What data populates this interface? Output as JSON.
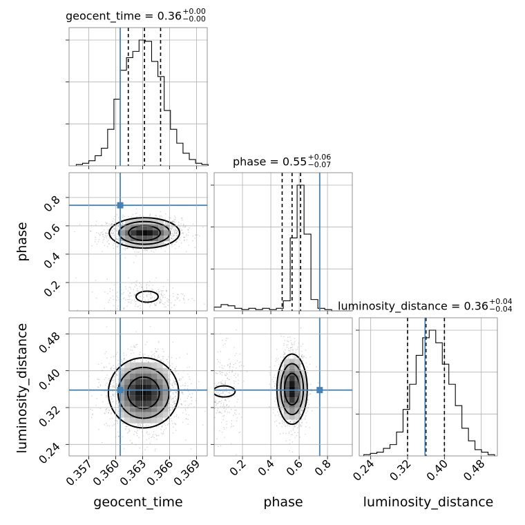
{
  "chart_data": {
    "type": "corner",
    "parameters": [
      "geocent_time",
      "phase",
      "luminosity_distance"
    ],
    "ranges": {
      "geocent_time": [
        0.3548,
        0.3702
      ],
      "phase": [
        0.0,
        0.975
      ],
      "luminosity_distance": [
        0.215,
        0.515
      ]
    },
    "truths": {
      "geocent_time": 0.3605,
      "phase": 0.745,
      "luminosity_distance": 0.358
    },
    "truth_color": "#4682b4",
    "titles": {
      "geocent_time": {
        "label": "geocent_time = 0.36",
        "plus": "+0.00",
        "minus": "−0.00"
      },
      "phase": {
        "label": "phase = 0.55",
        "plus": "+0.06",
        "minus": "−0.07"
      },
      "luminosity_distance": {
        "label": "luminosity_distance = 0.36",
        "plus": "+0.04",
        "minus": "−0.04"
      }
    },
    "quantiles": {
      "geocent_time": [
        0.3614,
        0.3632,
        0.365
      ],
      "phase": [
        0.48,
        0.55,
        0.61
      ],
      "luminosity_distance": [
        0.32,
        0.36,
        0.4
      ]
    },
    "ticks": {
      "geocent_time": [
        "0.357",
        "0.360",
        "0.363",
        "0.366",
        "0.369"
      ],
      "phase": [
        "0.2",
        "0.4",
        "0.6",
        "0.8"
      ],
      "luminosity_distance": [
        "0.24",
        "0.32",
        "0.40",
        "0.48"
      ]
    },
    "hist_1d": {
      "geocent_time": {
        "edges_start": 0.3556,
        "bin_width": 0.0007,
        "counts": [
          1,
          2,
          4,
          8,
          14,
          29,
          53,
          76,
          86,
          91,
          100,
          99,
          83,
          71,
          44,
          29,
          18,
          10,
          5,
          2,
          1
        ]
      },
      "phase": {
        "edges_start": 0.0,
        "bin_width": 0.0488,
        "counts": [
          3,
          5,
          4,
          2,
          1,
          2,
          1,
          2,
          1,
          2,
          8,
          58,
          100,
          61,
          9,
          2,
          1,
          0,
          0,
          0
        ]
      },
      "luminosity_distance": {
        "edges_start": 0.225,
        "bin_width": 0.0142,
        "counts": [
          1,
          2,
          3,
          6,
          9,
          19,
          37,
          57,
          80,
          94,
          100,
          90,
          73,
          57,
          40,
          22,
          12,
          5,
          3,
          1
        ]
      }
    },
    "hist_2d": {
      "phase_vs_geocent_time": {
        "mode_x": 0.3632,
        "mode_y": 0.55,
        "sx": 0.0018,
        "sy": 0.045,
        "secondary_x": 0.3635,
        "secondary_y": 0.1
      },
      "luminosity_distance_vs_geocent_time": {
        "mode_x": 0.3631,
        "mode_y": 0.352,
        "sx": 0.0018,
        "sy": 0.035
      },
      "luminosity_distance_vs_phase": {
        "mode_x": 0.55,
        "mode_y": 0.36,
        "sx": 0.045,
        "sy": 0.035,
        "secondary_x": 0.07,
        "secondary_y": 0.355
      }
    },
    "grid": true
  }
}
